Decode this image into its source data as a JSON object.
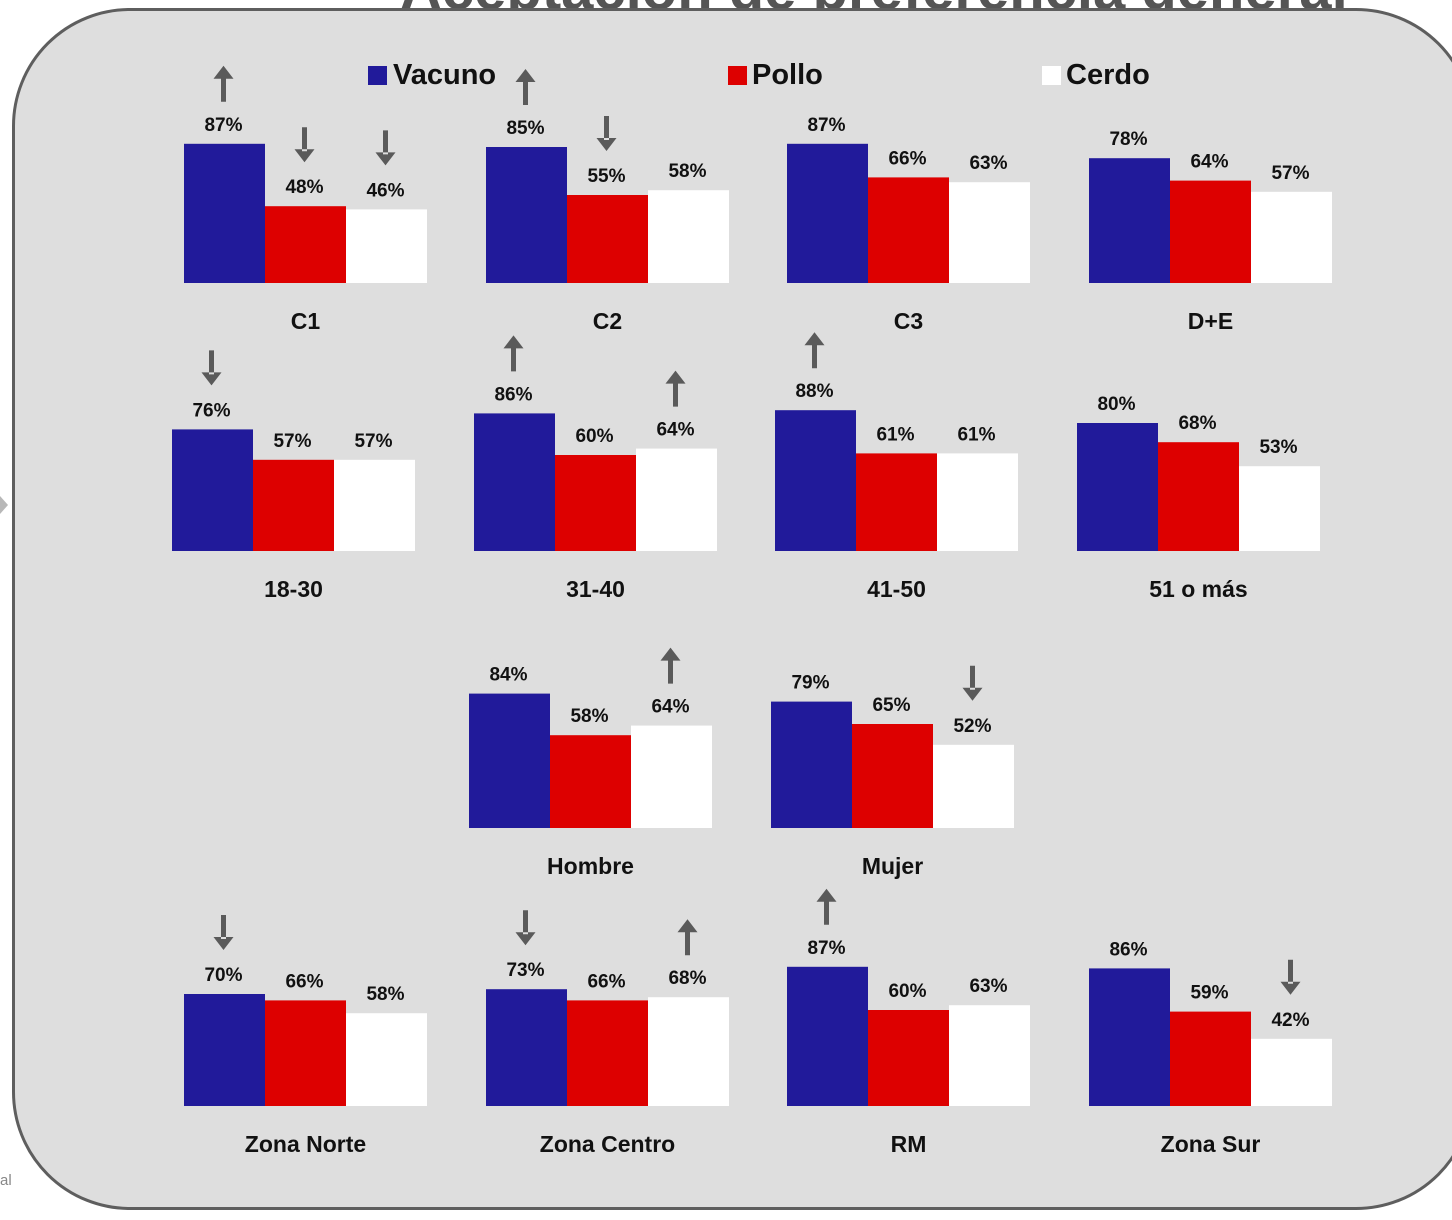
{
  "top_title_fragment": "Aceptación de preferencia general",
  "footer_fragment": "al",
  "colors": {
    "Vacuno": "#211a9a",
    "Pollo": "#dd0000",
    "Cerdo": "#ffffff",
    "arrow": "#5a5a5a"
  },
  "chart_data": {
    "type": "bar",
    "series_names": [
      "Vacuno",
      "Pollo",
      "Cerdo"
    ],
    "value_unit": "%",
    "ylim": [
      0,
      100
    ],
    "legend_position": "top",
    "grid": false,
    "panels": [
      {
        "label": "C1",
        "values": [
          87,
          48,
          46
        ],
        "arrows": [
          "up",
          "down",
          "down"
        ]
      },
      {
        "label": "C2",
        "values": [
          85,
          55,
          58
        ],
        "arrows": [
          "up",
          "down",
          null
        ]
      },
      {
        "label": "C3",
        "values": [
          87,
          66,
          63
        ],
        "arrows": [
          null,
          null,
          null
        ]
      },
      {
        "label": "D+E",
        "values": [
          78,
          64,
          57
        ],
        "arrows": [
          null,
          null,
          null
        ]
      },
      {
        "label": "18-30",
        "values": [
          76,
          57,
          57
        ],
        "arrows": [
          "down",
          null,
          null
        ]
      },
      {
        "label": "31-40",
        "values": [
          86,
          60,
          64
        ],
        "arrows": [
          "up",
          null,
          "up"
        ]
      },
      {
        "label": "41-50",
        "values": [
          88,
          61,
          61
        ],
        "arrows": [
          "up",
          null,
          null
        ]
      },
      {
        "label": "51 o más",
        "values": [
          80,
          68,
          53
        ],
        "arrows": [
          null,
          null,
          null
        ]
      },
      {
        "label": "Hombre",
        "values": [
          84,
          58,
          64
        ],
        "arrows": [
          null,
          null,
          "up"
        ]
      },
      {
        "label": "Mujer",
        "values": [
          79,
          65,
          52
        ],
        "arrows": [
          null,
          null,
          "down"
        ]
      },
      {
        "label": "Zona Norte",
        "values": [
          70,
          66,
          58
        ],
        "arrows": [
          "down",
          null,
          null
        ]
      },
      {
        "label": "Zona Centro",
        "values": [
          73,
          66,
          68
        ],
        "arrows": [
          "down",
          null,
          "up"
        ]
      },
      {
        "label": "RM",
        "values": [
          87,
          60,
          63
        ],
        "arrows": [
          "up",
          null,
          null
        ]
      },
      {
        "label": "Zona Sur",
        "values": [
          86,
          59,
          42
        ],
        "arrows": [
          null,
          null,
          "down"
        ]
      }
    ]
  }
}
